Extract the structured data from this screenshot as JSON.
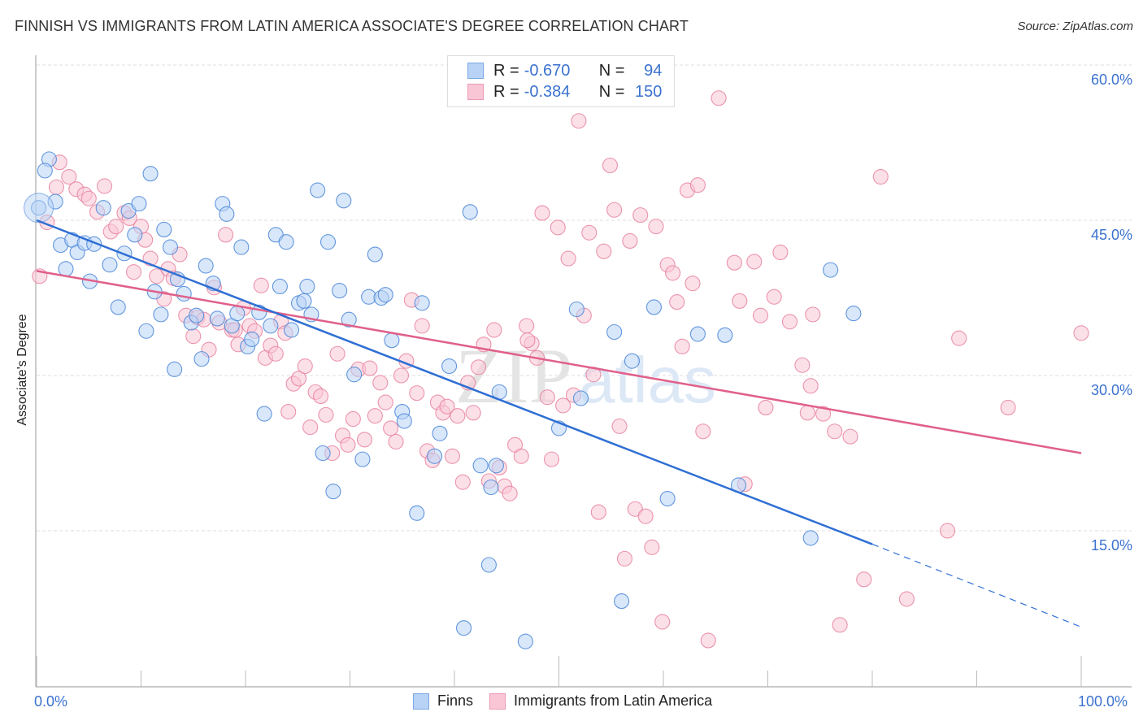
{
  "header": {
    "title": "FINNISH VS IMMIGRANTS FROM LATIN AMERICA ASSOCIATE'S DEGREE CORRELATION CHART",
    "source": "Source: ZipAtlas.com"
  },
  "stats_legend": {
    "rows": [
      {
        "r_label": "R =",
        "r_value": "-0.670",
        "n_label": "N =",
        "n_value": "94"
      },
      {
        "r_label": "R =",
        "r_value": "-0.384",
        "n_label": "N =",
        "n_value": "150"
      }
    ]
  },
  "watermark": {
    "zip": "ZIP",
    "atlas": "atlas"
  },
  "chart_data": {
    "type": "scatter",
    "title": "FINNISH VS IMMIGRANTS FROM LATIN AMERICA ASSOCIATE'S DEGREE CORRELATION CHART",
    "xlabel": "",
    "ylabel": "Associate's Degree",
    "xlim": [
      0,
      100
    ],
    "ylim": [
      0,
      62
    ],
    "x_tick_labels": [
      "0.0%",
      "100.0%"
    ],
    "y_ticks": [
      15,
      30,
      45,
      60
    ],
    "y_tick_labels": [
      "15.0%",
      "30.0%",
      "45.0%",
      "60.0%"
    ],
    "grid": "horizontal-dashed",
    "legend": [
      "Finns",
      "Immigrants from Latin America"
    ],
    "legend_position": "bottom-center",
    "colors": {
      "finns_fill": "#b8d3f5",
      "finns_stroke": "#4a86d8",
      "finns_line": "#2f6fd4",
      "latin_fill": "#f9c6d5",
      "latin_stroke": "#e8829f",
      "latin_line": "#e0608a",
      "tick_text": "#3b72d0"
    },
    "series": [
      {
        "name": "Finns",
        "r": -0.67,
        "n": 94,
        "trend": {
          "x0": 0,
          "y0": 45.0,
          "x1": 80,
          "y1": 13.7,
          "dashed_to_x": 100,
          "dashed_to_y": 5.7
        },
        "points": [
          [
            0.2,
            46.2
          ],
          [
            1.2,
            50.9
          ],
          [
            0.8,
            49.8
          ],
          [
            1.8,
            46.8
          ],
          [
            2.3,
            42.6
          ],
          [
            3.4,
            43.1
          ],
          [
            2.8,
            40.3
          ],
          [
            3.9,
            41.9
          ],
          [
            4.6,
            42.8
          ],
          [
            5.1,
            39.1
          ],
          [
            5.5,
            42.7
          ],
          [
            6.4,
            46.2
          ],
          [
            7.0,
            40.7
          ],
          [
            7.8,
            36.6
          ],
          [
            8.4,
            41.8
          ],
          [
            8.8,
            45.9
          ],
          [
            9.4,
            43.6
          ],
          [
            9.8,
            46.6
          ],
          [
            10.5,
            34.3
          ],
          [
            10.9,
            49.5
          ],
          [
            11.3,
            38.1
          ],
          [
            11.9,
            35.9
          ],
          [
            12.2,
            44.1
          ],
          [
            12.8,
            42.4
          ],
          [
            13.2,
            30.6
          ],
          [
            13.5,
            39.3
          ],
          [
            14.1,
            37.9
          ],
          [
            14.8,
            35.1
          ],
          [
            15.3,
            35.8
          ],
          [
            15.8,
            31.6
          ],
          [
            16.2,
            40.6
          ],
          [
            16.9,
            38.9
          ],
          [
            17.3,
            35.5
          ],
          [
            17.8,
            46.6
          ],
          [
            18.2,
            45.6
          ],
          [
            18.7,
            34.8
          ],
          [
            19.2,
            36.0
          ],
          [
            19.6,
            42.4
          ],
          [
            20.2,
            32.8
          ],
          [
            20.6,
            33.5
          ],
          [
            21.3,
            36.1
          ],
          [
            21.8,
            26.3
          ],
          [
            22.4,
            34.8
          ],
          [
            22.9,
            43.6
          ],
          [
            23.3,
            38.6
          ],
          [
            23.9,
            42.9
          ],
          [
            24.4,
            34.4
          ],
          [
            25.1,
            37.0
          ],
          [
            25.6,
            37.2
          ],
          [
            25.9,
            38.6
          ],
          [
            26.3,
            35.9
          ],
          [
            26.9,
            47.9
          ],
          [
            27.4,
            22.5
          ],
          [
            27.9,
            42.9
          ],
          [
            28.4,
            18.8
          ],
          [
            29.0,
            38.2
          ],
          [
            29.4,
            46.9
          ],
          [
            29.9,
            35.4
          ],
          [
            30.4,
            30.1
          ],
          [
            31.2,
            21.9
          ],
          [
            31.8,
            37.6
          ],
          [
            32.4,
            41.7
          ],
          [
            33.0,
            37.5
          ],
          [
            33.4,
            37.8
          ],
          [
            34.0,
            33.4
          ],
          [
            35.0,
            26.5
          ],
          [
            35.2,
            25.6
          ],
          [
            36.4,
            16.7
          ],
          [
            36.9,
            37.0
          ],
          [
            38.1,
            22.2
          ],
          [
            38.6,
            24.4
          ],
          [
            39.5,
            30.9
          ],
          [
            40.9,
            5.6
          ],
          [
            41.5,
            45.8
          ],
          [
            42.5,
            21.3
          ],
          [
            43.3,
            11.7
          ],
          [
            43.5,
            19.2
          ],
          [
            44.0,
            21.3
          ],
          [
            44.3,
            28.4
          ],
          [
            46.8,
            4.3
          ],
          [
            50.0,
            24.9
          ],
          [
            51.7,
            36.4
          ],
          [
            52.1,
            27.8
          ],
          [
            55.3,
            34.2
          ],
          [
            56.0,
            8.2
          ],
          [
            57.0,
            31.4
          ],
          [
            59.1,
            36.6
          ],
          [
            60.4,
            18.1
          ],
          [
            65.9,
            33.9
          ],
          [
            67.2,
            19.4
          ],
          [
            74.1,
            14.3
          ],
          [
            76.0,
            40.2
          ],
          [
            78.2,
            36.0
          ],
          [
            63.3,
            34.0
          ]
        ]
      },
      {
        "name": "Immigrants from Latin America",
        "r": -0.384,
        "n": 150,
        "trend": {
          "x0": 0,
          "y0": 40.1,
          "x1": 100,
          "y1": 22.5
        },
        "points": [
          [
            0.3,
            39.6
          ],
          [
            1.0,
            44.8
          ],
          [
            1.9,
            48.2
          ],
          [
            2.2,
            50.6
          ],
          [
            3.1,
            49.2
          ],
          [
            3.8,
            48.0
          ],
          [
            4.6,
            47.5
          ],
          [
            5.0,
            47.1
          ],
          [
            5.8,
            45.8
          ],
          [
            6.5,
            48.3
          ],
          [
            7.1,
            43.9
          ],
          [
            7.6,
            44.4
          ],
          [
            8.4,
            45.7
          ],
          [
            8.9,
            45.2
          ],
          [
            9.3,
            40.0
          ],
          [
            10.0,
            44.4
          ],
          [
            10.4,
            43.1
          ],
          [
            10.9,
            41.3
          ],
          [
            11.5,
            39.6
          ],
          [
            12.2,
            37.4
          ],
          [
            12.6,
            40.3
          ],
          [
            13.1,
            39.4
          ],
          [
            13.7,
            41.7
          ],
          [
            14.3,
            35.8
          ],
          [
            15.0,
            33.8
          ],
          [
            15.4,
            35.6
          ],
          [
            16.0,
            35.4
          ],
          [
            16.5,
            32.5
          ],
          [
            17.0,
            38.5
          ],
          [
            17.5,
            35.1
          ],
          [
            18.1,
            43.6
          ],
          [
            18.7,
            34.4
          ],
          [
            19.3,
            33.0
          ],
          [
            19.8,
            36.5
          ],
          [
            20.4,
            34.8
          ],
          [
            20.9,
            34.3
          ],
          [
            21.5,
            38.7
          ],
          [
            21.9,
            31.7
          ],
          [
            22.4,
            32.9
          ],
          [
            22.9,
            32.1
          ],
          [
            23.4,
            35.2
          ],
          [
            23.8,
            34.1
          ],
          [
            24.1,
            26.5
          ],
          [
            24.6,
            29.2
          ],
          [
            25.1,
            29.7
          ],
          [
            25.7,
            30.9
          ],
          [
            26.2,
            25.0
          ],
          [
            26.7,
            28.4
          ],
          [
            27.2,
            28.0
          ],
          [
            27.7,
            26.2
          ],
          [
            28.3,
            22.5
          ],
          [
            28.8,
            32.1
          ],
          [
            29.3,
            24.2
          ],
          [
            29.8,
            23.3
          ],
          [
            30.3,
            25.8
          ],
          [
            30.8,
            30.6
          ],
          [
            31.4,
            23.8
          ],
          [
            31.9,
            30.7
          ],
          [
            32.4,
            26.1
          ],
          [
            32.9,
            29.3
          ],
          [
            33.4,
            27.4
          ],
          [
            33.9,
            24.9
          ],
          [
            34.4,
            23.6
          ],
          [
            34.9,
            30.0
          ],
          [
            35.4,
            31.4
          ],
          [
            35.9,
            37.3
          ],
          [
            36.4,
            28.3
          ],
          [
            36.9,
            34.8
          ],
          [
            37.4,
            22.7
          ],
          [
            37.9,
            21.8
          ],
          [
            38.4,
            27.4
          ],
          [
            38.9,
            26.4
          ],
          [
            39.3,
            27.0
          ],
          [
            39.8,
            22.2
          ],
          [
            40.3,
            26.1
          ],
          [
            40.8,
            19.7
          ],
          [
            41.3,
            29.3
          ],
          [
            41.8,
            26.4
          ],
          [
            42.3,
            30.8
          ],
          [
            42.8,
            33.0
          ],
          [
            43.3,
            19.8
          ],
          [
            43.8,
            34.4
          ],
          [
            44.3,
            21.1
          ],
          [
            44.8,
            19.3
          ],
          [
            45.3,
            18.6
          ],
          [
            45.8,
            23.3
          ],
          [
            46.4,
            22.2
          ],
          [
            46.9,
            34.8
          ],
          [
            47.4,
            33.1
          ],
          [
            47.9,
            31.7
          ],
          [
            48.4,
            45.7
          ],
          [
            48.9,
            27.9
          ],
          [
            49.3,
            21.9
          ],
          [
            49.9,
            44.3
          ],
          [
            50.4,
            27.1
          ],
          [
            50.9,
            41.3
          ],
          [
            51.4,
            28.1
          ],
          [
            51.9,
            54.6
          ],
          [
            52.4,
            35.8
          ],
          [
            52.9,
            43.8
          ],
          [
            53.3,
            30.1
          ],
          [
            53.8,
            16.8
          ],
          [
            54.3,
            42.0
          ],
          [
            54.9,
            50.3
          ],
          [
            55.3,
            46.0
          ],
          [
            55.8,
            25.1
          ],
          [
            56.3,
            12.3
          ],
          [
            56.8,
            43.0
          ],
          [
            57.3,
            17.1
          ],
          [
            57.8,
            45.5
          ],
          [
            58.3,
            16.4
          ],
          [
            58.9,
            13.4
          ],
          [
            59.3,
            44.4
          ],
          [
            59.9,
            6.2
          ],
          [
            60.4,
            40.7
          ],
          [
            60.9,
            39.9
          ],
          [
            61.3,
            37.1
          ],
          [
            61.8,
            32.8
          ],
          [
            62.3,
            47.9
          ],
          [
            62.8,
            38.9
          ],
          [
            63.3,
            48.4
          ],
          [
            63.8,
            24.6
          ],
          [
            64.3,
            4.4
          ],
          [
            65.3,
            56.8
          ],
          [
            66.8,
            40.9
          ],
          [
            67.3,
            37.2
          ],
          [
            67.8,
            19.5
          ],
          [
            68.7,
            41.0
          ],
          [
            69.3,
            35.8
          ],
          [
            69.8,
            26.9
          ],
          [
            70.6,
            37.6
          ],
          [
            71.2,
            41.9
          ],
          [
            72.1,
            35.2
          ],
          [
            73.3,
            31.0
          ],
          [
            73.8,
            26.4
          ],
          [
            74.1,
            29.0
          ],
          [
            74.3,
            35.9
          ],
          [
            75.3,
            26.3
          ],
          [
            76.4,
            24.6
          ],
          [
            76.9,
            5.9
          ],
          [
            77.9,
            24.1
          ],
          [
            79.2,
            10.3
          ],
          [
            80.8,
            49.2
          ],
          [
            83.3,
            8.4
          ],
          [
            87.2,
            15.0
          ],
          [
            88.3,
            33.6
          ],
          [
            93.0,
            26.9
          ],
          [
            100.0,
            34.1
          ],
          [
            47.0,
            33.4
          ],
          [
            19.0,
            34.4
          ]
        ]
      }
    ]
  },
  "axes": {
    "x_left": "0.0%",
    "x_right": "100.0%",
    "y_title": "Associate's Degree",
    "y_ticks": [
      "60.0%",
      "45.0%",
      "30.0%",
      "15.0%"
    ]
  },
  "bottom_legend": {
    "items": [
      {
        "label": "Finns"
      },
      {
        "label": "Immigrants from Latin America"
      }
    ]
  }
}
